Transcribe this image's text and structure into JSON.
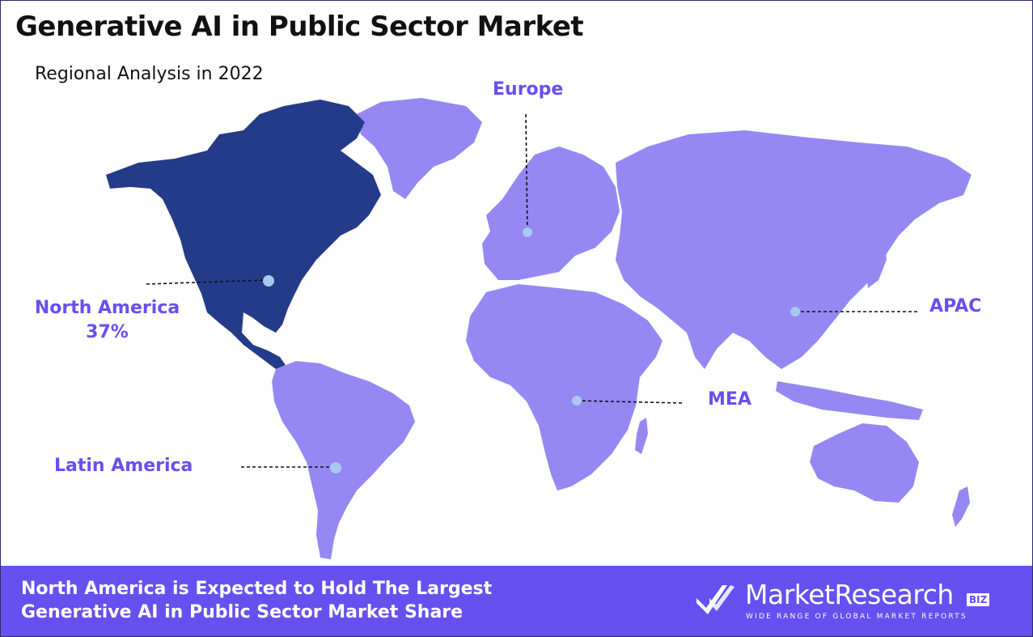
{
  "title": "Generative AI in Public Sector Market",
  "subtitle": "Regional Analysis in 2022",
  "colors": {
    "highlight_region": "#243b89",
    "other_regions": "#9588f3",
    "label": "#6650ef",
    "banner": "#6650ef",
    "marker": "#a9c8f0"
  },
  "regions": [
    {
      "id": "north-america",
      "name": "North America",
      "share": "37%",
      "highlighted": true
    },
    {
      "id": "europe",
      "name": "Europe",
      "share": "",
      "highlighted": false
    },
    {
      "id": "apac",
      "name": "APAC",
      "share": "",
      "highlighted": false
    },
    {
      "id": "mea",
      "name": "MEA",
      "share": "",
      "highlighted": false
    },
    {
      "id": "latin-america",
      "name": "Latin America",
      "share": "",
      "highlighted": false
    }
  ],
  "banner": {
    "line1": "North America is Expected to Hold The Largest",
    "line2": "Generative AI in Public Sector Market Share"
  },
  "logo": {
    "name": "MarketResearch",
    "badge": "BIZ",
    "tagline": "WIDE RANGE OF GLOBAL MARKET REPORTS",
    "mark_icon": "double-check-icon"
  }
}
